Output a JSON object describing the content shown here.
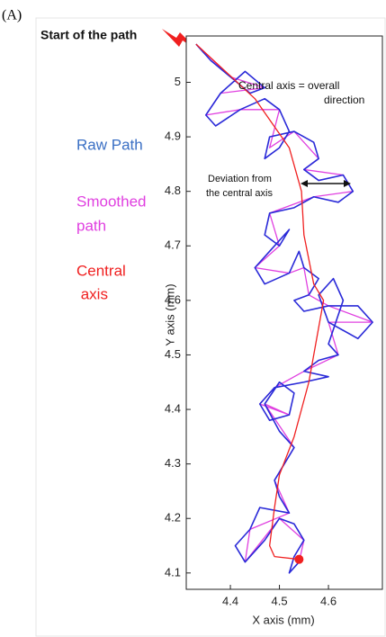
{
  "chart_data": {
    "type": "line",
    "panel_label": "(A)",
    "annotations": {
      "start": "Start of the path",
      "central_axis_note": [
        "Central axis = overall",
        "direction"
      ],
      "deviation_note": [
        "Deviation from",
        "the central axis"
      ]
    },
    "legend_labels": {
      "raw": [
        "Raw Path"
      ],
      "smoothed": [
        "Smoothed",
        "path"
      ],
      "central": [
        "Central",
        " axis"
      ]
    },
    "xlabel": "X axis (mm)",
    "ylabel": "Y axis (mm)",
    "xlim": [
      4.31,
      4.71
    ],
    "ylim": [
      4.07,
      5.085
    ],
    "xticks": [
      4.4,
      4.5,
      4.6
    ],
    "yticks": [
      4.1,
      4.2,
      4.3,
      4.4,
      4.5,
      4.6,
      4.7,
      4.8,
      4.9,
      5
    ],
    "series": [
      {
        "name": "Smoothed path",
        "color": "#e040e0",
        "x": [
          4.33,
          4.4,
          4.47,
          4.38,
          4.35,
          4.42,
          4.5,
          4.48,
          4.53,
          4.58,
          4.55,
          4.63,
          4.65,
          4.57,
          4.48,
          4.5,
          4.45,
          4.52,
          4.55,
          4.56,
          4.6,
          4.69,
          4.6,
          4.62,
          4.55,
          4.49,
          4.46,
          4.52,
          4.47,
          4.53,
          4.49,
          4.52,
          4.44,
          4.43,
          4.5,
          4.55,
          4.54
        ],
        "values": [
          5.07,
          5.01,
          4.99,
          4.98,
          4.94,
          4.95,
          4.95,
          4.88,
          4.91,
          4.86,
          4.84,
          4.83,
          4.8,
          4.79,
          4.76,
          4.7,
          4.66,
          4.65,
          4.66,
          4.61,
          4.59,
          4.56,
          4.56,
          4.5,
          4.47,
          4.44,
          4.41,
          4.39,
          4.41,
          4.33,
          4.27,
          4.21,
          4.18,
          4.12,
          4.2,
          4.16,
          4.12
        ]
      },
      {
        "name": "Raw Path",
        "color": "#2a2ad8",
        "x": [
          4.33,
          4.36,
          4.4,
          4.44,
          4.47,
          4.43,
          4.38,
          4.35,
          4.37,
          4.42,
          4.47,
          4.5,
          4.52,
          4.5,
          4.47,
          4.48,
          4.53,
          4.57,
          4.58,
          4.55,
          4.58,
          4.63,
          4.65,
          4.62,
          4.57,
          4.53,
          4.48,
          4.47,
          4.5,
          4.52,
          4.48,
          4.45,
          4.47,
          4.52,
          4.54,
          4.55,
          4.58,
          4.56,
          4.53,
          4.55,
          4.6,
          4.66,
          4.69,
          4.66,
          4.6,
          4.58,
          4.61,
          4.63,
          4.6,
          4.62,
          4.58,
          4.55,
          4.6,
          4.55,
          4.49,
          4.46,
          4.48,
          4.52,
          4.53,
          4.5,
          4.47,
          4.5,
          4.53,
          4.51,
          4.49,
          4.5,
          4.52,
          4.46,
          4.44,
          4.41,
          4.43,
          4.47,
          4.5,
          4.53,
          4.55,
          4.53,
          4.52,
          4.54
        ],
        "values": [
          5.07,
          5.04,
          5.01,
          4.98,
          4.99,
          5.02,
          4.98,
          4.94,
          4.92,
          4.95,
          4.97,
          4.95,
          4.91,
          4.88,
          4.86,
          4.9,
          4.91,
          4.89,
          4.86,
          4.84,
          4.82,
          4.83,
          4.8,
          4.78,
          4.79,
          4.77,
          4.76,
          4.72,
          4.7,
          4.73,
          4.69,
          4.66,
          4.63,
          4.65,
          4.69,
          4.66,
          4.64,
          4.61,
          4.6,
          4.58,
          4.59,
          4.59,
          4.56,
          4.53,
          4.56,
          4.61,
          4.64,
          4.6,
          4.52,
          4.5,
          4.49,
          4.47,
          4.46,
          4.45,
          4.44,
          4.41,
          4.38,
          4.39,
          4.43,
          4.45,
          4.41,
          4.36,
          4.33,
          4.3,
          4.27,
          4.24,
          4.21,
          4.22,
          4.18,
          4.15,
          4.12,
          4.16,
          4.2,
          4.19,
          4.16,
          4.13,
          4.1,
          4.12
        ]
      },
      {
        "name": "Central axis",
        "color": "#f02020",
        "x": [
          4.33,
          4.45,
          4.52,
          4.545,
          4.55,
          4.57,
          4.59,
          4.58,
          4.56,
          4.53,
          4.5,
          4.49,
          4.48,
          4.49,
          4.54
        ],
        "values": [
          5.07,
          4.97,
          4.88,
          4.8,
          4.72,
          4.63,
          4.6,
          4.55,
          4.45,
          4.35,
          4.28,
          4.22,
          4.15,
          4.13,
          4.125
        ]
      }
    ]
  }
}
